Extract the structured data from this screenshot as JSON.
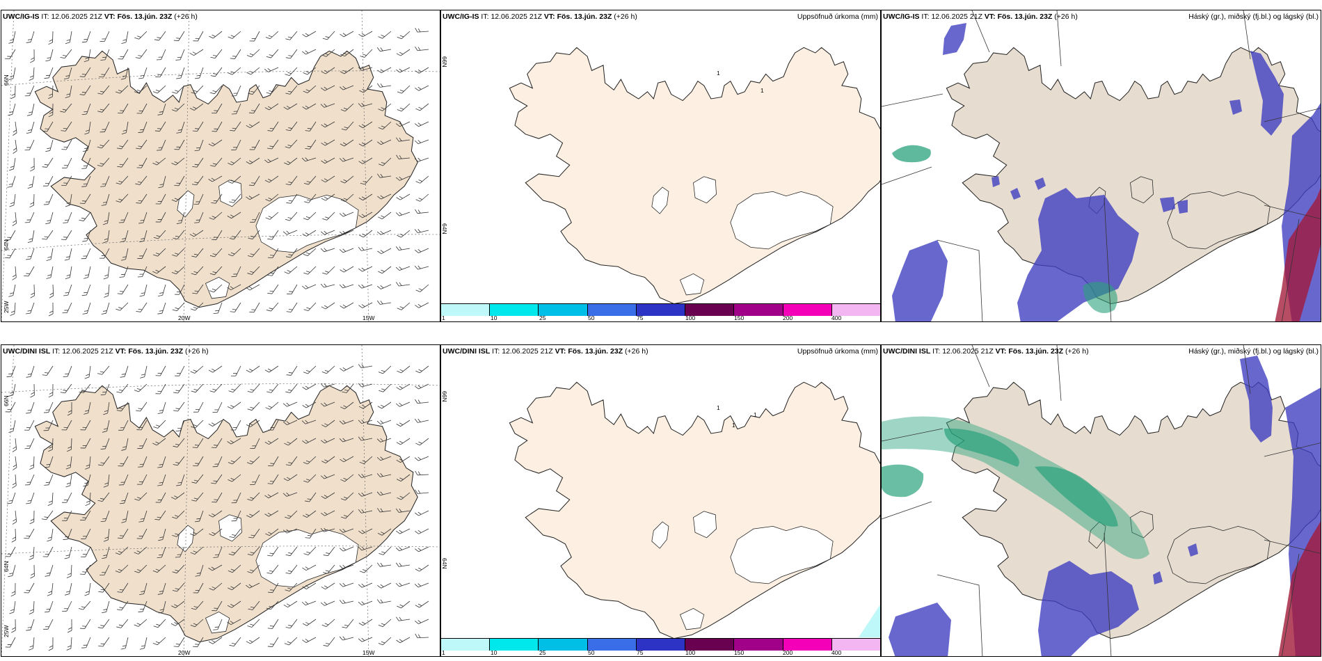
{
  "top": {
    "model": "UWC/IG-IS",
    "it_label": "IT:",
    "it_value": "12.06.2025 21Z",
    "vt_label": "VT:",
    "vt_value": "Fös. 13.jún. 23Z",
    "lead": "(+26 h)"
  },
  "bottom": {
    "model": "UWC/DINI ISL",
    "it_label": "IT:",
    "it_value": "12.06.2025 21Z",
    "vt_label": "VT:",
    "vt_value": "Fös. 13.jún. 23Z",
    "lead": "(+26 h)"
  },
  "precip_title": "Uppsöfnuð úrkoma (mm)",
  "cloud_title": "Háský (gr.), miðský (fj.bl.) og lágský (bl.)",
  "grid": {
    "lat_66": "66N",
    "lat_64": "64N",
    "lon_25": "25W",
    "lon_20": "20W",
    "lon_15": "15W"
  },
  "precip_colorbar": {
    "levels": [
      "1",
      "10",
      "25",
      "50",
      "75",
      "100",
      "150",
      "200",
      "400"
    ],
    "colors": [
      "#bff8f8",
      "#00e8ec",
      "#00bfe6",
      "#3a6ee8",
      "#2d33c4",
      "#6a0050",
      "#a10089",
      "#f400b8",
      "#f3b6f2"
    ]
  },
  "precip_marks_top": [
    "1",
    "1"
  ],
  "precip_marks_bottom": [
    "1",
    "1",
    "1"
  ],
  "colors": {
    "land_wind": "#efdfcb",
    "land_precip": "#fdf0e2",
    "land_cloud": "#e6dccf",
    "high_cloud": "#2aa27c",
    "mid_cloud": "#3c3cc0",
    "low_cloud": "#a31a3a",
    "outline": "#222222"
  },
  "icons": {
    "wind_barb": "wind-barb-icon",
    "coastline": "coastline"
  }
}
